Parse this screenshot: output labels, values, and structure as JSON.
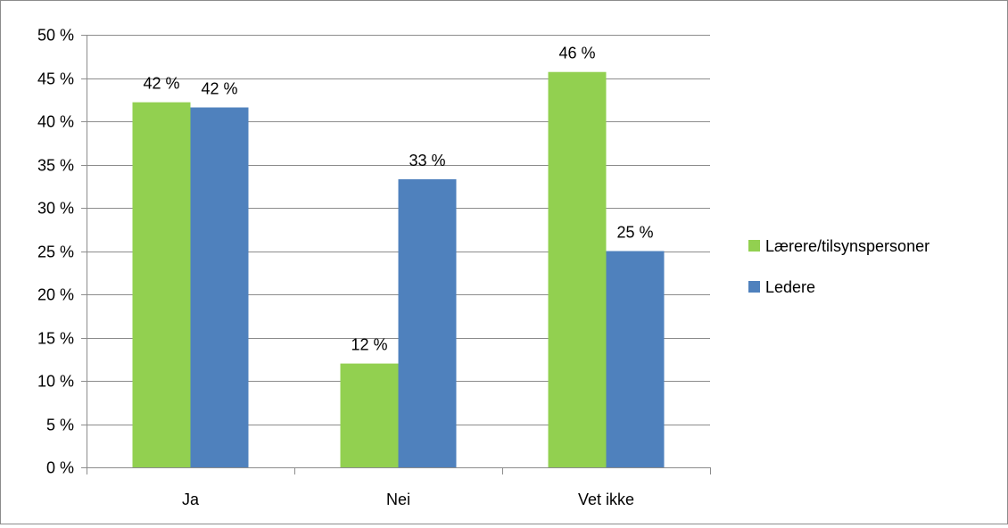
{
  "chart_data": {
    "type": "bar",
    "categories": [
      "Ja",
      "Nei",
      "Vet ikke"
    ],
    "series": [
      {
        "name": "Lærere/tilsynspersoner",
        "color": "#92d050",
        "values": [
          42.2,
          12.0,
          45.7
        ],
        "labels": [
          "42 %",
          "12 %",
          "46 %"
        ]
      },
      {
        "name": "Ledere",
        "color": "#4f81bd",
        "values": [
          41.6,
          33.3,
          25.0
        ],
        "labels": [
          "42 %",
          "33 %",
          "25 %"
        ]
      }
    ],
    "ylim": [
      0,
      50
    ],
    "yticks": [
      0,
      5,
      10,
      15,
      20,
      25,
      30,
      35,
      40,
      45,
      50
    ],
    "ytick_labels": [
      "0 %",
      "5 %",
      "10 %",
      "15 %",
      "20 %",
      "25 %",
      "30 %",
      "35 %",
      "40 %",
      "45 %",
      "50 %"
    ],
    "grid": true,
    "legend_position": "right",
    "gridline_color": "#8c8c8c",
    "axis_color": "#8c8c8c"
  }
}
